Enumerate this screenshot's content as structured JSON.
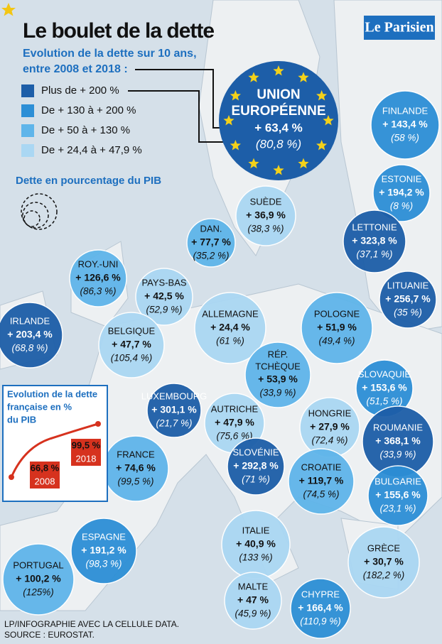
{
  "header": {
    "title": "Le boulet de la dette",
    "logo": "Le Parisien",
    "subtitle_lines": [
      "Evolution de la dette sur 10 ans,",
      "entre 2008 et 2018 :"
    ],
    "note": "Dette en pourcentage du PIB"
  },
  "legend": [
    {
      "label": "Plus de + 200 %",
      "color": "#1d5ea8"
    },
    {
      "label": "De + 130 à + 200  %",
      "color": "#2d8fd6"
    },
    {
      "label": "De + 50 à + 130 %",
      "color": "#5fb5ea"
    },
    {
      "label": "De + 24,4 à  + 47,9 %",
      "color": "#aad7f3"
    }
  ],
  "union": {
    "name_lines": [
      "UNION",
      "EUROPÉENNE"
    ],
    "growth": "+ 63,4 %",
    "ratio": "(80,8 %)",
    "color": "#1d5ea8"
  },
  "countries": [
    {
      "name": "FINLANDE",
      "growth": "+ 143,4 %",
      "ratio": "(58 %)",
      "color": "#2d8fd6"
    },
    {
      "name": "ESTONIE",
      "growth": "+ 194,2 %",
      "ratio": "(8 %)",
      "color": "#2d8fd6"
    },
    {
      "name": "LETTONIE",
      "growth": "+ 323,8 %",
      "ratio": "(37,1 %)",
      "color": "#1d5ea8"
    },
    {
      "name": "LITUANIE",
      "growth": "+ 256,7 %",
      "ratio": "(35 %)",
      "color": "#1d5ea8"
    },
    {
      "name": "SUÈDE",
      "growth": "+ 36,9 %",
      "ratio": "(38,3 %)",
      "color": "#aad7f3"
    },
    {
      "name": "DAN.",
      "growth": "+ 77,7 %",
      "ratio": "(35,2 %)",
      "color": "#5fb5ea"
    },
    {
      "name": "ROY.-UNI",
      "growth": "+ 126,6 %",
      "ratio": "(86,3 %)",
      "color": "#5fb5ea"
    },
    {
      "name": "PAYS-BAS",
      "growth": "+ 42,5 %",
      "ratio": "(52,9 %)",
      "color": "#aad7f3"
    },
    {
      "name": "IRLANDE",
      "growth": "+ 203,4 %",
      "ratio": "(68,8 %)",
      "color": "#1d5ea8"
    },
    {
      "name": "BELGIQUE",
      "growth": "+ 47,7 %",
      "ratio": "(105,4 %)",
      "color": "#aad7f3"
    },
    {
      "name": "ALLEMAGNE",
      "growth": "+ 24,4 %",
      "ratio": "(61 %)",
      "color": "#aad7f3"
    },
    {
      "name": "POLOGNE",
      "growth": "+ 51,9 %",
      "ratio": "(49,4 %)",
      "color": "#5fb5ea"
    },
    {
      "name": "RÉP.",
      "name2": "TCHÈQUE",
      "growth": "+ 53,9 %",
      "ratio": "(33,9 %)",
      "color": "#5fb5ea"
    },
    {
      "name": "SLOVAQUIE",
      "growth": "+ 153,6 %",
      "ratio": "(51,5 %)",
      "color": "#2d8fd6"
    },
    {
      "name": "LUXEMBOURG",
      "growth": "+ 301,1 %",
      "ratio": "(21,7 %)",
      "color": "#1d5ea8"
    },
    {
      "name": "AUTRICHE",
      "growth": "+ 47,9 %",
      "ratio": "(75,6 %)",
      "color": "#aad7f3"
    },
    {
      "name": "HONGRIE",
      "growth": "+ 27,9 %",
      "ratio": "(72,4 %)",
      "color": "#aad7f3"
    },
    {
      "name": "ROUMANIE",
      "growth": "+ 368,1 %",
      "ratio": "(33,9 %)",
      "color": "#1d5ea8"
    },
    {
      "name": "FRANCE",
      "growth": "+ 74,6 %",
      "ratio": "(99,5 %)",
      "color": "#5fb5ea"
    },
    {
      "name": "SLOVÉNIE",
      "growth": "+ 292,8 %",
      "ratio": "(71 %)",
      "color": "#1d5ea8"
    },
    {
      "name": "CROATIE",
      "growth": "+ 119,7 %",
      "ratio": "(74,5 %)",
      "color": "#5fb5ea"
    },
    {
      "name": "BULGARIE",
      "growth": "+ 155,6 %",
      "ratio": "(23,1 %)",
      "color": "#2d8fd6"
    },
    {
      "name": "ESPAGNE",
      "growth": "+ 191,2 %",
      "ratio": "(98,3 %)",
      "color": "#2d8fd6"
    },
    {
      "name": "ITALIE",
      "growth": "+ 40,9 %",
      "ratio": "(133 %)",
      "color": "#aad7f3"
    },
    {
      "name": "GRÈCE",
      "growth": "+ 30,7 %",
      "ratio": "(182,2 %)",
      "color": "#aad7f3"
    },
    {
      "name": "PORTUGAL",
      "growth": "+ 100,2 %",
      "ratio": "(125%)",
      "color": "#5fb5ea"
    },
    {
      "name": "MALTE",
      "growth": "+ 47 %",
      "ratio": "(45,9 %)",
      "color": "#aad7f3"
    },
    {
      "name": "CHYPRE",
      "growth": "+ 166,4  %",
      "ratio": "(110,9 %)",
      "color": "#2d8fd6"
    }
  ],
  "inset": {
    "title_lines": [
      "Evolution de la dette",
      "française en %",
      "du PIB"
    ],
    "start": {
      "value": "66,8 %",
      "year": "2008"
    },
    "end": {
      "value": "99,5 %",
      "year": "2018"
    }
  },
  "source": [
    "LP/INFOGRAPHIE AVEC LA CELLULE DATA.",
    "SOURCE : EUROSTAT."
  ]
}
